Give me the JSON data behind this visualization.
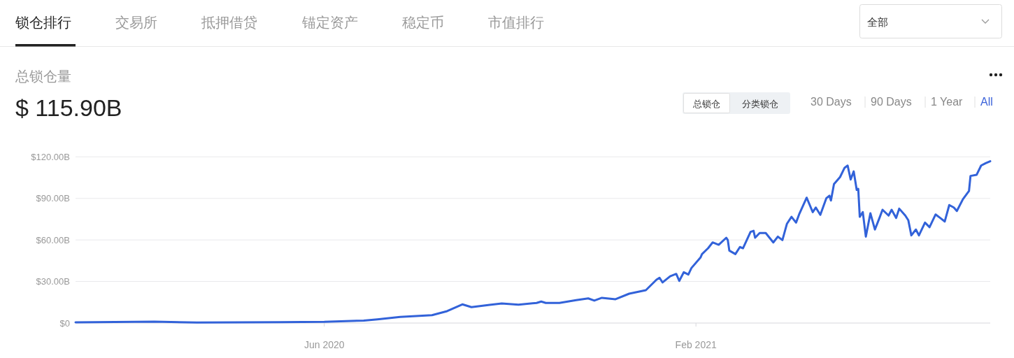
{
  "chart_data": {
    "type": "line",
    "title": "总锁仓量",
    "subtitle": "$ 115.90B",
    "annotations": [
      "锁仓排行",
      "交易所",
      "抵押借贷",
      "锚定资产",
      "稳定币",
      "市值排行",
      "全部",
      "总锁仓",
      "分类锁仓",
      "30 Days",
      "90 Days",
      "1 Year",
      "All"
    ],
    "xlim": [
      "2019-12-20",
      "2021-08-14"
    ],
    "xticks": [
      {
        "value": "2020-06-01",
        "label": "Jun 2020"
      },
      {
        "value": "2021-02-01",
        "label": "Feb 2021"
      }
    ],
    "ylim": [
      0,
      120
    ],
    "yticks": [
      {
        "value": 0,
        "label": "$0"
      },
      {
        "value": 30,
        "label": "$30.00B"
      },
      {
        "value": 60,
        "label": "$60.00B"
      },
      {
        "value": 90,
        "label": "$90.00B"
      },
      {
        "value": 120,
        "label": "$120.00B"
      }
    ],
    "grid": "y",
    "marker": "none",
    "line_style": "solid",
    "series": [
      {
        "color": "#3262d9",
        "x": [
          "2019-12-20",
          "2020-02-10",
          "2020-03-09",
          "2020-05-03",
          "2020-06-01",
          "2020-06-27",
          "2020-07-06",
          "2020-07-21",
          "2020-08-11",
          "2020-08-21",
          "2020-08-31",
          "2020-09-06",
          "2020-09-18",
          "2020-09-26",
          "2020-10-07",
          "2020-10-19",
          "2020-10-22",
          "2020-10-25",
          "2020-11-03",
          "2020-11-14",
          "2020-11-22",
          "2020-11-26",
          "2020-12-01",
          "2020-12-10",
          "2020-12-19",
          "2020-12-30",
          "2021-01-06",
          "2021-01-08",
          "2021-01-10",
          "2021-01-15",
          "2021-01-19",
          "2021-01-21",
          "2021-01-24",
          "2021-01-27",
          "2021-01-29",
          "2021-02-04",
          "2021-02-05",
          "2021-02-09",
          "2021-02-12",
          "2021-02-16",
          "2021-02-21",
          "2021-02-22",
          "2021-02-23",
          "2021-02-27",
          "2021-03-02",
          "2021-03-04",
          "2021-03-09",
          "2021-03-11",
          "2021-03-12",
          "2021-03-15",
          "2021-03-19",
          "2021-03-24",
          "2021-03-27",
          "2021-03-30",
          "2021-04-02",
          "2021-04-05",
          "2021-04-08",
          "2021-04-10",
          "2021-04-15",
          "2021-04-19",
          "2021-04-21",
          "2021-04-24",
          "2021-04-28",
          "2021-04-30",
          "2021-05-01",
          "2021-05-03",
          "2021-05-07",
          "2021-05-10",
          "2021-05-12",
          "2021-05-14",
          "2021-05-16",
          "2021-05-18",
          "2021-05-19",
          "2021-05-20",
          "2021-05-22",
          "2021-05-24",
          "2021-05-27",
          "2021-05-30",
          "2021-06-02",
          "2021-06-04",
          "2021-06-08",
          "2021-06-10",
          "2021-06-13",
          "2021-06-15",
          "2021-06-19",
          "2021-06-21",
          "2021-06-23",
          "2021-06-26",
          "2021-06-28",
          "2021-07-02",
          "2021-07-05",
          "2021-07-09",
          "2021-07-12",
          "2021-07-15",
          "2021-07-18",
          "2021-07-21",
          "2021-07-23",
          "2021-07-27",
          "2021-07-31",
          "2021-08-01",
          "2021-08-05",
          "2021-08-08",
          "2021-08-11",
          "2021-08-14"
        ],
        "values": [
          0.5,
          1.0,
          0.4,
          0.6,
          0.9,
          1.8,
          2.7,
          4.4,
          5.7,
          8.6,
          13.5,
          11.5,
          13.1,
          14.1,
          13.3,
          14.5,
          15.5,
          14.5,
          14.5,
          16.5,
          17.8,
          16.2,
          18.2,
          17.2,
          21.2,
          23.7,
          31.3,
          32.7,
          29.3,
          33.8,
          35.5,
          30.4,
          36.7,
          35.0,
          39.7,
          47.3,
          49.8,
          54.0,
          58.2,
          56.5,
          61.6,
          59.9,
          52.3,
          49.8,
          54.9,
          54.0,
          65.8,
          66.6,
          61.6,
          65.0,
          65.0,
          58.2,
          62.4,
          59.9,
          71.7,
          76.7,
          72.5,
          78.4,
          90.5,
          80.1,
          83.4,
          78.1,
          90.2,
          91.9,
          88.5,
          100.3,
          105.4,
          112.1,
          113.7,
          103.6,
          109.5,
          96.1,
          96.9,
          76.7,
          80.1,
          62.4,
          79.3,
          67.5,
          75.9,
          81.8,
          77.6,
          81.8,
          75.9,
          82.6,
          77.6,
          74.2,
          63.3,
          67.5,
          63.3,
          72.5,
          69.2,
          78.4,
          75.9,
          73.3,
          85.2,
          83.4,
          80.9,
          89.4,
          95.3,
          106.2,
          107.0,
          113.7,
          115.4,
          116.8
        ]
      }
    ]
  }
}
